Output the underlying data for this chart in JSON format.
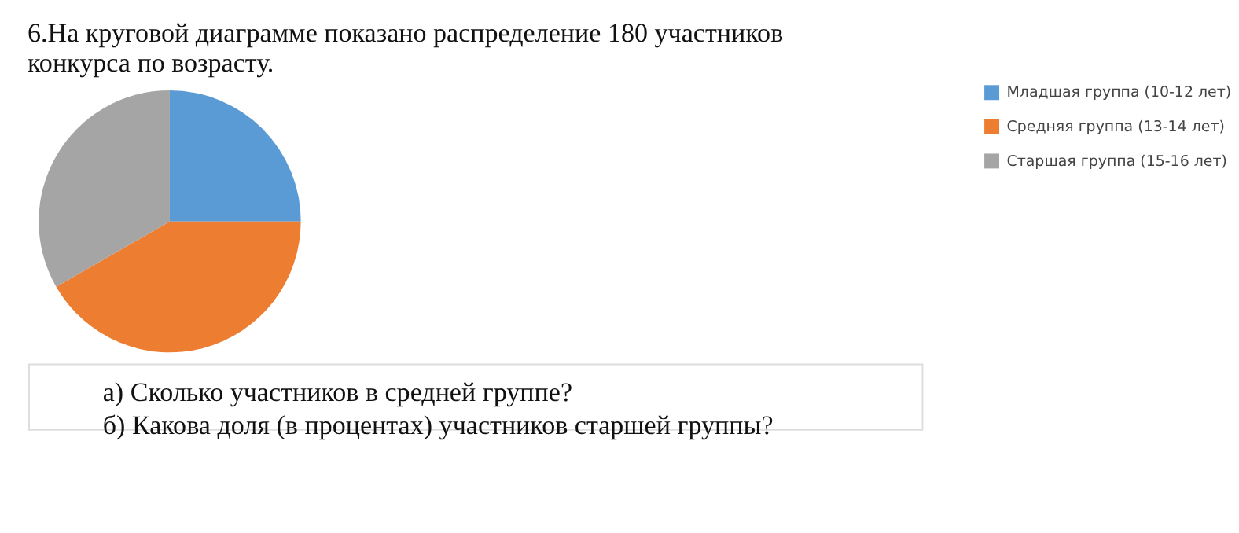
{
  "chart_data": {
    "type": "pie",
    "title": "6.На круговой диаграмме показано распределение 180 участников конкурса по возрасту.",
    "categories": [
      "Младшая группа (10-12 лет)",
      "Средняя группа (13-14 лет)",
      "Старшая группа (15-16 лет)"
    ],
    "values": [
      25,
      41.7,
      33.3
    ],
    "colors": [
      "#5b9bd5",
      "#ed7d31",
      "#a5a5a5"
    ],
    "legend": "right",
    "annotations": [
      "а) Сколько участников в средней группе?",
      "б) Какова доля (в процентах) участников старшей группы?"
    ]
  }
}
